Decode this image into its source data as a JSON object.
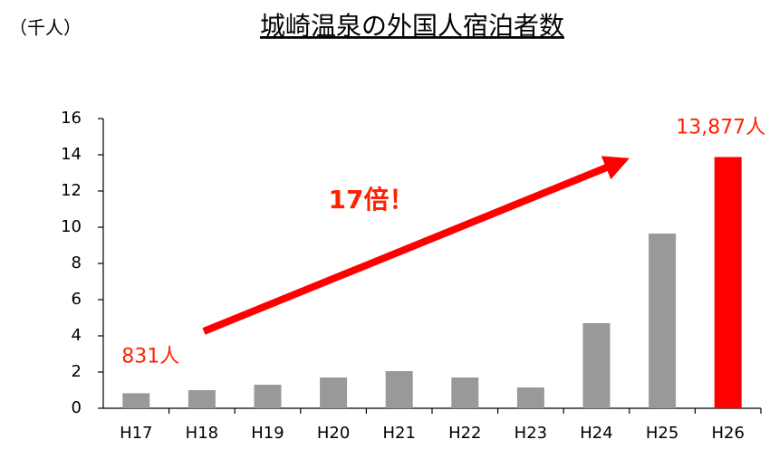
{
  "chart_data": {
    "type": "bar",
    "title": "城崎温泉の外国人宿泊者数",
    "y_label": "（千人）",
    "annotation": "17倍！",
    "categories": [
      "H17",
      "H18",
      "H19",
      "H20",
      "H21",
      "H22",
      "H23",
      "H24",
      "H25",
      "H26"
    ],
    "values": [
      0.831,
      1.0,
      1.3,
      1.7,
      2.05,
      1.7,
      1.15,
      4.7,
      9.65,
      13.877
    ],
    "value_labels": [
      "831人",
      null,
      null,
      null,
      null,
      null,
      null,
      null,
      null,
      "13,877人"
    ],
    "colors": [
      "#999999",
      "#999999",
      "#999999",
      "#999999",
      "#999999",
      "#999999",
      "#999999",
      "#999999",
      "#999999",
      "#ff0000"
    ],
    "ylim": [
      0,
      16
    ],
    "yticks": [
      0,
      2,
      4,
      6,
      8,
      10,
      12,
      14,
      16
    ],
    "grid": false
  }
}
